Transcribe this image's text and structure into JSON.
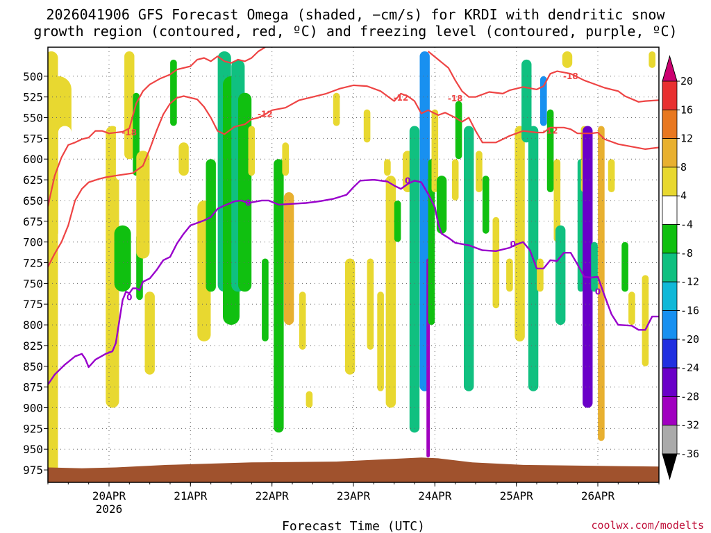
{
  "title": {
    "line1": "2026041906 GFS Forecast Omega (shaded, −cm/s) for KRDI with dendritic snow",
    "line2": "growth region (contoured, red, ºC) and freezing level (contoured, purple, ºC)"
  },
  "credit": "coolwx.com/modelts",
  "colors": {
    "temp_contour": "#ee4444",
    "freezing_contour": "#9900cc",
    "terrain": "#a0522d",
    "grid": "#666666"
  },
  "chart_data": {
    "type": "heatmap",
    "xlabel": "Forecast Time (UTC)",
    "ylabel": "",
    "x_ticks": [
      {
        "label": "20APR",
        "sublabel": "2026",
        "hour": 18
      },
      {
        "label": "21APR",
        "sublabel": "",
        "hour": 42
      },
      {
        "label": "22APR",
        "sublabel": "",
        "hour": 66
      },
      {
        "label": "23APR",
        "sublabel": "",
        "hour": 90
      },
      {
        "label": "24APR",
        "sublabel": "",
        "hour": 114
      },
      {
        "label": "25APR",
        "sublabel": "",
        "hour": 138
      },
      {
        "label": "26APR",
        "sublabel": "",
        "hour": 162
      }
    ],
    "xlim_hours": [
      0,
      180
    ],
    "ylim_hpa": [
      990,
      465
    ],
    "y_ticks": [
      500,
      525,
      550,
      575,
      600,
      625,
      650,
      675,
      700,
      725,
      750,
      775,
      800,
      825,
      850,
      875,
      900,
      925,
      950,
      975
    ],
    "grid": true,
    "colorbar": {
      "levels": [
        20,
        16,
        12,
        8,
        4,
        -4,
        -8,
        -12,
        -16,
        -20,
        -24,
        -28,
        -32,
        -36
      ],
      "colors": [
        "#cc0070",
        "#e83030",
        "#e87820",
        "#e8b030",
        "#e8d830",
        "#ffffff",
        "#10c010",
        "#10c080",
        "#10b8d8",
        "#1890f0",
        "#2030e0",
        "#6a00c8",
        "#a000c0",
        "#aaaaaa",
        "#000000"
      ]
    },
    "temp_contours": [
      {
        "level": -18,
        "label": "-18",
        "points": [
          [
            0,
            657
          ],
          [
            2,
            620
          ],
          [
            4,
            598
          ],
          [
            6,
            583
          ],
          [
            8,
            580
          ],
          [
            10,
            576
          ],
          [
            12,
            574
          ],
          [
            14,
            566
          ],
          [
            16,
            566
          ],
          [
            18,
            569
          ],
          [
            22,
            567
          ],
          [
            24,
            563
          ],
          [
            26,
            533
          ],
          [
            28,
            518
          ],
          [
            30,
            510
          ],
          [
            33,
            503
          ],
          [
            36,
            498
          ],
          [
            38,
            492
          ],
          [
            42,
            488
          ],
          [
            44,
            480
          ],
          [
            46,
            478
          ],
          [
            48,
            482
          ],
          [
            50,
            476
          ],
          [
            52,
            482
          ],
          [
            54,
            484
          ],
          [
            56,
            480
          ],
          [
            58,
            482
          ],
          [
            60,
            478
          ],
          [
            62,
            470
          ],
          [
            64,
            465
          ]
        ]
      },
      {
        "level": -12,
        "label": "-12",
        "points": [
          [
            0,
            730
          ],
          [
            2,
            714
          ],
          [
            4,
            700
          ],
          [
            6,
            680
          ],
          [
            8,
            650
          ],
          [
            10,
            636
          ],
          [
            12,
            628
          ],
          [
            15,
            624
          ],
          [
            17,
            622
          ],
          [
            20,
            620
          ],
          [
            25,
            617
          ],
          [
            28,
            608
          ],
          [
            30,
            588
          ],
          [
            32,
            566
          ],
          [
            34,
            546
          ],
          [
            36,
            533
          ],
          [
            38,
            526
          ],
          [
            40,
            524
          ],
          [
            44,
            528
          ],
          [
            46,
            537
          ],
          [
            48,
            550
          ],
          [
            50,
            566
          ],
          [
            52,
            570
          ],
          [
            55,
            561
          ],
          [
            58,
            558
          ],
          [
            60,
            552
          ],
          [
            62,
            550
          ],
          [
            64,
            546
          ],
          [
            66,
            541
          ],
          [
            70,
            538
          ],
          [
            74,
            529
          ],
          [
            78,
            525
          ],
          [
            82,
            521
          ],
          [
            86,
            515
          ],
          [
            90,
            511
          ],
          [
            94,
            512
          ],
          [
            98,
            518
          ],
          [
            100,
            524
          ],
          [
            102,
            530
          ],
          [
            104,
            521
          ],
          [
            106,
            524
          ],
          [
            108,
            530
          ],
          [
            110,
            545
          ],
          [
            112,
            541
          ],
          [
            115,
            547
          ],
          [
            117,
            544
          ],
          [
            120,
            550
          ],
          [
            122,
            555
          ],
          [
            124,
            550
          ],
          [
            126,
            566
          ],
          [
            128,
            580
          ],
          [
            132,
            580
          ],
          [
            134,
            576
          ],
          [
            136,
            572
          ],
          [
            140,
            566
          ],
          [
            144,
            568
          ],
          [
            146,
            568
          ],
          [
            148,
            562
          ],
          [
            152,
            562
          ],
          [
            154,
            564
          ],
          [
            156,
            569
          ],
          [
            160,
            569
          ],
          [
            162,
            568
          ],
          [
            164,
            576
          ],
          [
            168,
            582
          ],
          [
            172,
            585
          ],
          [
            176,
            588
          ],
          [
            180,
            586
          ]
        ]
      },
      {
        "level": -18,
        "label": "-18",
        "points": [
          [
            112,
            470
          ],
          [
            115,
            480
          ],
          [
            118,
            490
          ],
          [
            120,
            505
          ],
          [
            122,
            518
          ],
          [
            124,
            525
          ],
          [
            126,
            525
          ],
          [
            130,
            519
          ],
          [
            134,
            521
          ],
          [
            136,
            517
          ],
          [
            140,
            513
          ],
          [
            144,
            516
          ],
          [
            146,
            512
          ],
          [
            148,
            497
          ],
          [
            150,
            494
          ],
          [
            154,
            497
          ],
          [
            158,
            505
          ],
          [
            160,
            508
          ],
          [
            164,
            514
          ],
          [
            168,
            518
          ],
          [
            170,
            524
          ],
          [
            174,
            531
          ],
          [
            176,
            530
          ],
          [
            180,
            529
          ]
        ]
      }
    ],
    "freezing_contour": {
      "level": 0,
      "label": "0",
      "points": [
        [
          0,
          872
        ],
        [
          2,
          860
        ],
        [
          5,
          848
        ],
        [
          8,
          838
        ],
        [
          10,
          835
        ],
        [
          11,
          841
        ],
        [
          12,
          851
        ],
        [
          14,
          842
        ],
        [
          17,
          835
        ],
        [
          19,
          832
        ],
        [
          20,
          822
        ],
        [
          21,
          796
        ],
        [
          22,
          770
        ],
        [
          23,
          760
        ],
        [
          24,
          762
        ],
        [
          25,
          756
        ],
        [
          26,
          756
        ],
        [
          27,
          758
        ],
        [
          28,
          748
        ],
        [
          30,
          744
        ],
        [
          32,
          734
        ],
        [
          34,
          722
        ],
        [
          36,
          718
        ],
        [
          38,
          702
        ],
        [
          40,
          690
        ],
        [
          42,
          680
        ],
        [
          44,
          677
        ],
        [
          46,
          674
        ],
        [
          48,
          670
        ],
        [
          50,
          660
        ],
        [
          52,
          656
        ],
        [
          55,
          651
        ],
        [
          57,
          650
        ],
        [
          59,
          653
        ],
        [
          63,
          650
        ],
        [
          65,
          650
        ],
        [
          68,
          655
        ],
        [
          72,
          654
        ],
        [
          76,
          653
        ],
        [
          80,
          651
        ],
        [
          84,
          648
        ],
        [
          88,
          643
        ],
        [
          90,
          634
        ],
        [
          92,
          626
        ],
        [
          96,
          625
        ],
        [
          100,
          627
        ],
        [
          102,
          632
        ],
        [
          104,
          636
        ],
        [
          106,
          630
        ],
        [
          108,
          626
        ],
        [
          110,
          628
        ],
        [
          112,
          642
        ],
        [
          114,
          658
        ],
        [
          115,
          678
        ],
        [
          116,
          690
        ],
        [
          118,
          695
        ],
        [
          120,
          701
        ],
        [
          124,
          704
        ],
        [
          128,
          710
        ],
        [
          132,
          711
        ],
        [
          136,
          707
        ],
        [
          138,
          703
        ],
        [
          140,
          700
        ],
        [
          142,
          710
        ],
        [
          144,
          732
        ],
        [
          146,
          732
        ],
        [
          148,
          722
        ],
        [
          150,
          723
        ],
        [
          152,
          713
        ],
        [
          154,
          713
        ],
        [
          156,
          727
        ],
        [
          158,
          742
        ],
        [
          160,
          743
        ],
        [
          162,
          742
        ],
        [
          164,
          765
        ],
        [
          166,
          787
        ],
        [
          168,
          800
        ],
        [
          172,
          801
        ],
        [
          174,
          806
        ],
        [
          176,
          806
        ],
        [
          178,
          790
        ],
        [
          180,
          790
        ]
      ]
    },
    "terrain_pressure": [
      [
        0,
        972
      ],
      [
        10,
        973
      ],
      [
        20,
        972
      ],
      [
        35,
        969
      ],
      [
        60,
        966
      ],
      [
        85,
        965
      ],
      [
        100,
        962
      ],
      [
        110,
        960
      ],
      [
        115,
        961
      ],
      [
        125,
        966
      ],
      [
        140,
        969
      ],
      [
        160,
        970
      ],
      [
        180,
        971
      ]
    ]
  }
}
